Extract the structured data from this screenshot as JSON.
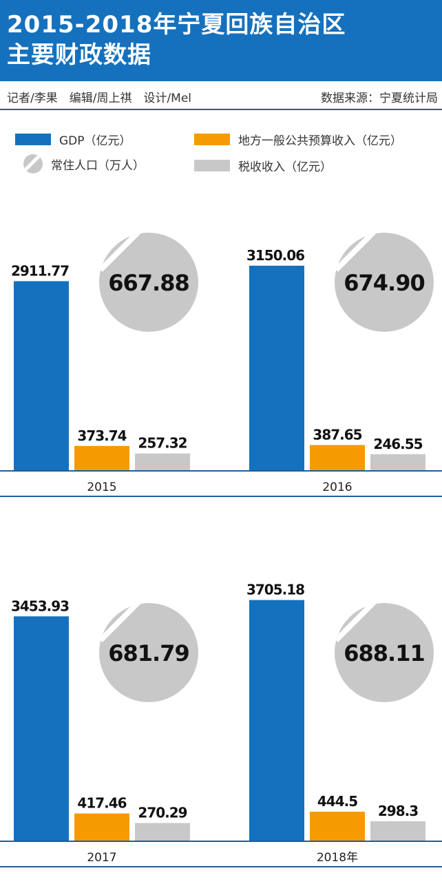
{
  "header": {
    "title_line1": "2015-2018年宁夏回族自治区",
    "title_line2": "主要财政数据"
  },
  "credits": {
    "left": "记者/李果　编辑/周上祺　设计/Mel",
    "right": "数据来源：宁夏统计局"
  },
  "legend": {
    "gdp": "GDP（亿元）",
    "budget": "地方一般公共预算收入（亿元）",
    "population": "常住人口（万人）",
    "tax": "税收收入（亿元）"
  },
  "colors": {
    "header_bg": "#1571bd",
    "gdp": "#1571bd",
    "budget": "#f59b00",
    "tax": "#c8c8c8",
    "population": "#c8c8c8",
    "rule": "#1f5d9b"
  },
  "chart_data": [
    {
      "type": "bar",
      "category": "2015",
      "series": [
        {
          "name": "GDP（亿元）",
          "value": 2911.77,
          "label": "2911.77"
        },
        {
          "name": "地方一般公共预算收入（亿元）",
          "value": 373.74,
          "label": "373.74"
        },
        {
          "name": "税收收入（亿元）",
          "value": 257.32,
          "label": "257.32"
        }
      ],
      "population": {
        "name": "常住人口（万人）",
        "value": 667.88,
        "label": "667.88"
      }
    },
    {
      "type": "bar",
      "category": "2016",
      "series": [
        {
          "name": "GDP（亿元）",
          "value": 3150.06,
          "label": "3150.06"
        },
        {
          "name": "地方一般公共预算收入（亿元）",
          "value": 387.65,
          "label": "387.65"
        },
        {
          "name": "税收收入（亿元）",
          "value": 246.55,
          "label": "246.55"
        }
      ],
      "population": {
        "name": "常住人口（万人）",
        "value": 674.9,
        "label": "674.90"
      }
    },
    {
      "type": "bar",
      "category": "2017",
      "series": [
        {
          "name": "GDP（亿元）",
          "value": 3453.93,
          "label": "3453.93"
        },
        {
          "name": "地方一般公共预算收入（亿元）",
          "value": 417.46,
          "label": "417.46"
        },
        {
          "name": "税收收入（亿元）",
          "value": 270.29,
          "label": "270.29"
        }
      ],
      "population": {
        "name": "常住人口（万人）",
        "value": 681.79,
        "label": "681.79"
      }
    },
    {
      "type": "bar",
      "category": "2018年",
      "series": [
        {
          "name": "GDP（亿元）",
          "value": 3705.18,
          "label": "3705.18"
        },
        {
          "name": "地方一般公共预算收入（亿元）",
          "value": 444.5,
          "label": "444.5"
        },
        {
          "name": "税收收入（亿元）",
          "value": 298.3,
          "label": "298.3"
        }
      ],
      "population": {
        "name": "常住人口（万人）",
        "value": 688.11,
        "label": "688.11"
      }
    }
  ]
}
